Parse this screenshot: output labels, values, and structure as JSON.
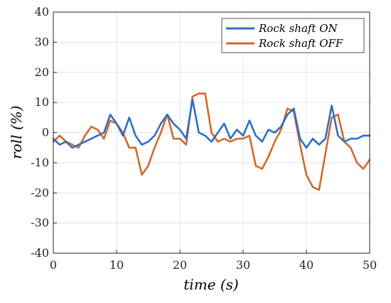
{
  "chart_data": {
    "type": "line",
    "title": "",
    "xlabel": "time (s)",
    "ylabel": "roll (%)",
    "xlim": [
      0,
      50
    ],
    "ylim": [
      -40,
      40
    ],
    "xticks": [
      0,
      10,
      20,
      30,
      40,
      50
    ],
    "yticks": [
      -40,
      -30,
      -20,
      -10,
      0,
      10,
      20,
      30,
      40
    ],
    "grid": true,
    "legend_position": "top-right",
    "series": [
      {
        "name": "Rock shaft ON",
        "color": "#2e6fc4",
        "x": [
          0,
          1,
          2,
          3,
          4,
          5,
          6,
          7,
          8,
          9,
          10,
          11,
          12,
          13,
          14,
          15,
          16,
          17,
          18,
          19,
          20,
          21,
          22,
          23,
          24,
          25,
          26,
          27,
          28,
          29,
          30,
          31,
          32,
          33,
          34,
          35,
          36,
          37,
          38,
          39,
          40,
          41,
          42,
          43,
          44,
          45,
          46,
          47,
          48,
          49,
          50
        ],
        "y": [
          -2,
          -4,
          -3,
          -5,
          -4,
          -3,
          -2,
          -1,
          0,
          6,
          3,
          -1,
          5,
          -1,
          -4,
          -3,
          -1,
          3,
          6,
          3,
          1,
          -2,
          11,
          0,
          -1,
          -3,
          0,
          3,
          -2,
          1,
          -1,
          4,
          -1,
          -3,
          1,
          0,
          2,
          6,
          8,
          -2,
          -5,
          -2,
          -4,
          -2,
          9,
          -1,
          -3,
          -2,
          -2,
          -1,
          -1
        ]
      },
      {
        "name": "Rock shaft OFF",
        "color": "#d4682c",
        "x": [
          0,
          1,
          2,
          3,
          4,
          5,
          6,
          7,
          8,
          9,
          10,
          11,
          12,
          13,
          14,
          15,
          16,
          17,
          18,
          19,
          20,
          21,
          22,
          23,
          24,
          25,
          26,
          27,
          28,
          29,
          30,
          31,
          32,
          33,
          34,
          35,
          36,
          37,
          38,
          39,
          40,
          41,
          42,
          43,
          44,
          45,
          46,
          47,
          48,
          49,
          50
        ],
        "y": [
          -3,
          -1,
          -3,
          -4,
          -5,
          -1,
          2,
          1,
          -2,
          4,
          3,
          0,
          -5,
          -5,
          -14,
          -11,
          -5,
          0,
          6,
          -2,
          -2,
          -4,
          12,
          13,
          13,
          0,
          -3,
          -2,
          -3,
          -2,
          -2,
          -1,
          -11,
          -12,
          -8,
          -3,
          1,
          8,
          7,
          -4,
          -14,
          -18,
          -19,
          -7,
          5,
          6,
          -3,
          -5,
          -10,
          -12,
          -9
        ]
      }
    ]
  }
}
